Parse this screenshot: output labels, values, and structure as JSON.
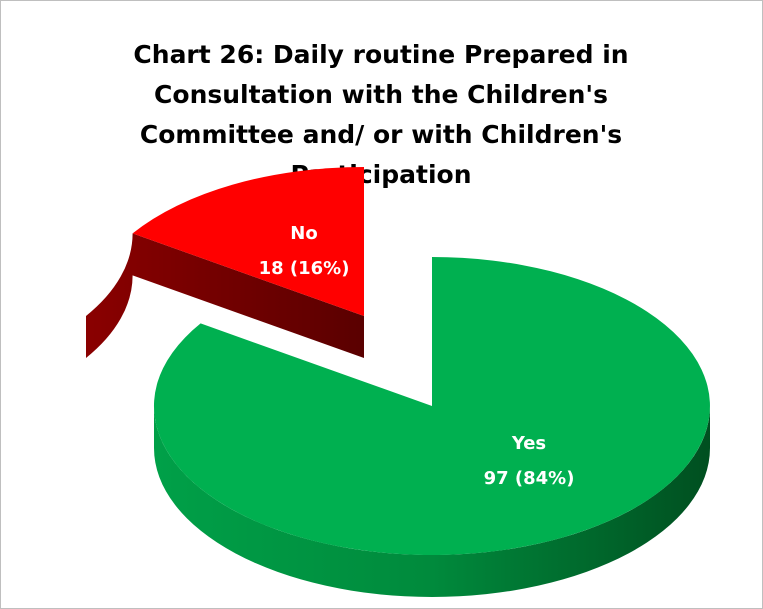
{
  "chart_data": {
    "type": "pie",
    "title_lines": [
      "Chart 26: Daily routine Prepared in",
      "Consultation with the Children's",
      "Committee and/ or with Children's",
      "Participation"
    ],
    "slices": [
      {
        "name": "Yes",
        "value": 97,
        "percent": "84%",
        "label_value": "97 (84%)",
        "color": "#00b050",
        "side_color": "#005a24"
      },
      {
        "name": "No",
        "value": 18,
        "percent": "16%",
        "label_value": "18 (16%)",
        "color": "#ff0000",
        "side_color": "#6b0000"
      }
    ],
    "exploded": true,
    "three_d": true
  }
}
